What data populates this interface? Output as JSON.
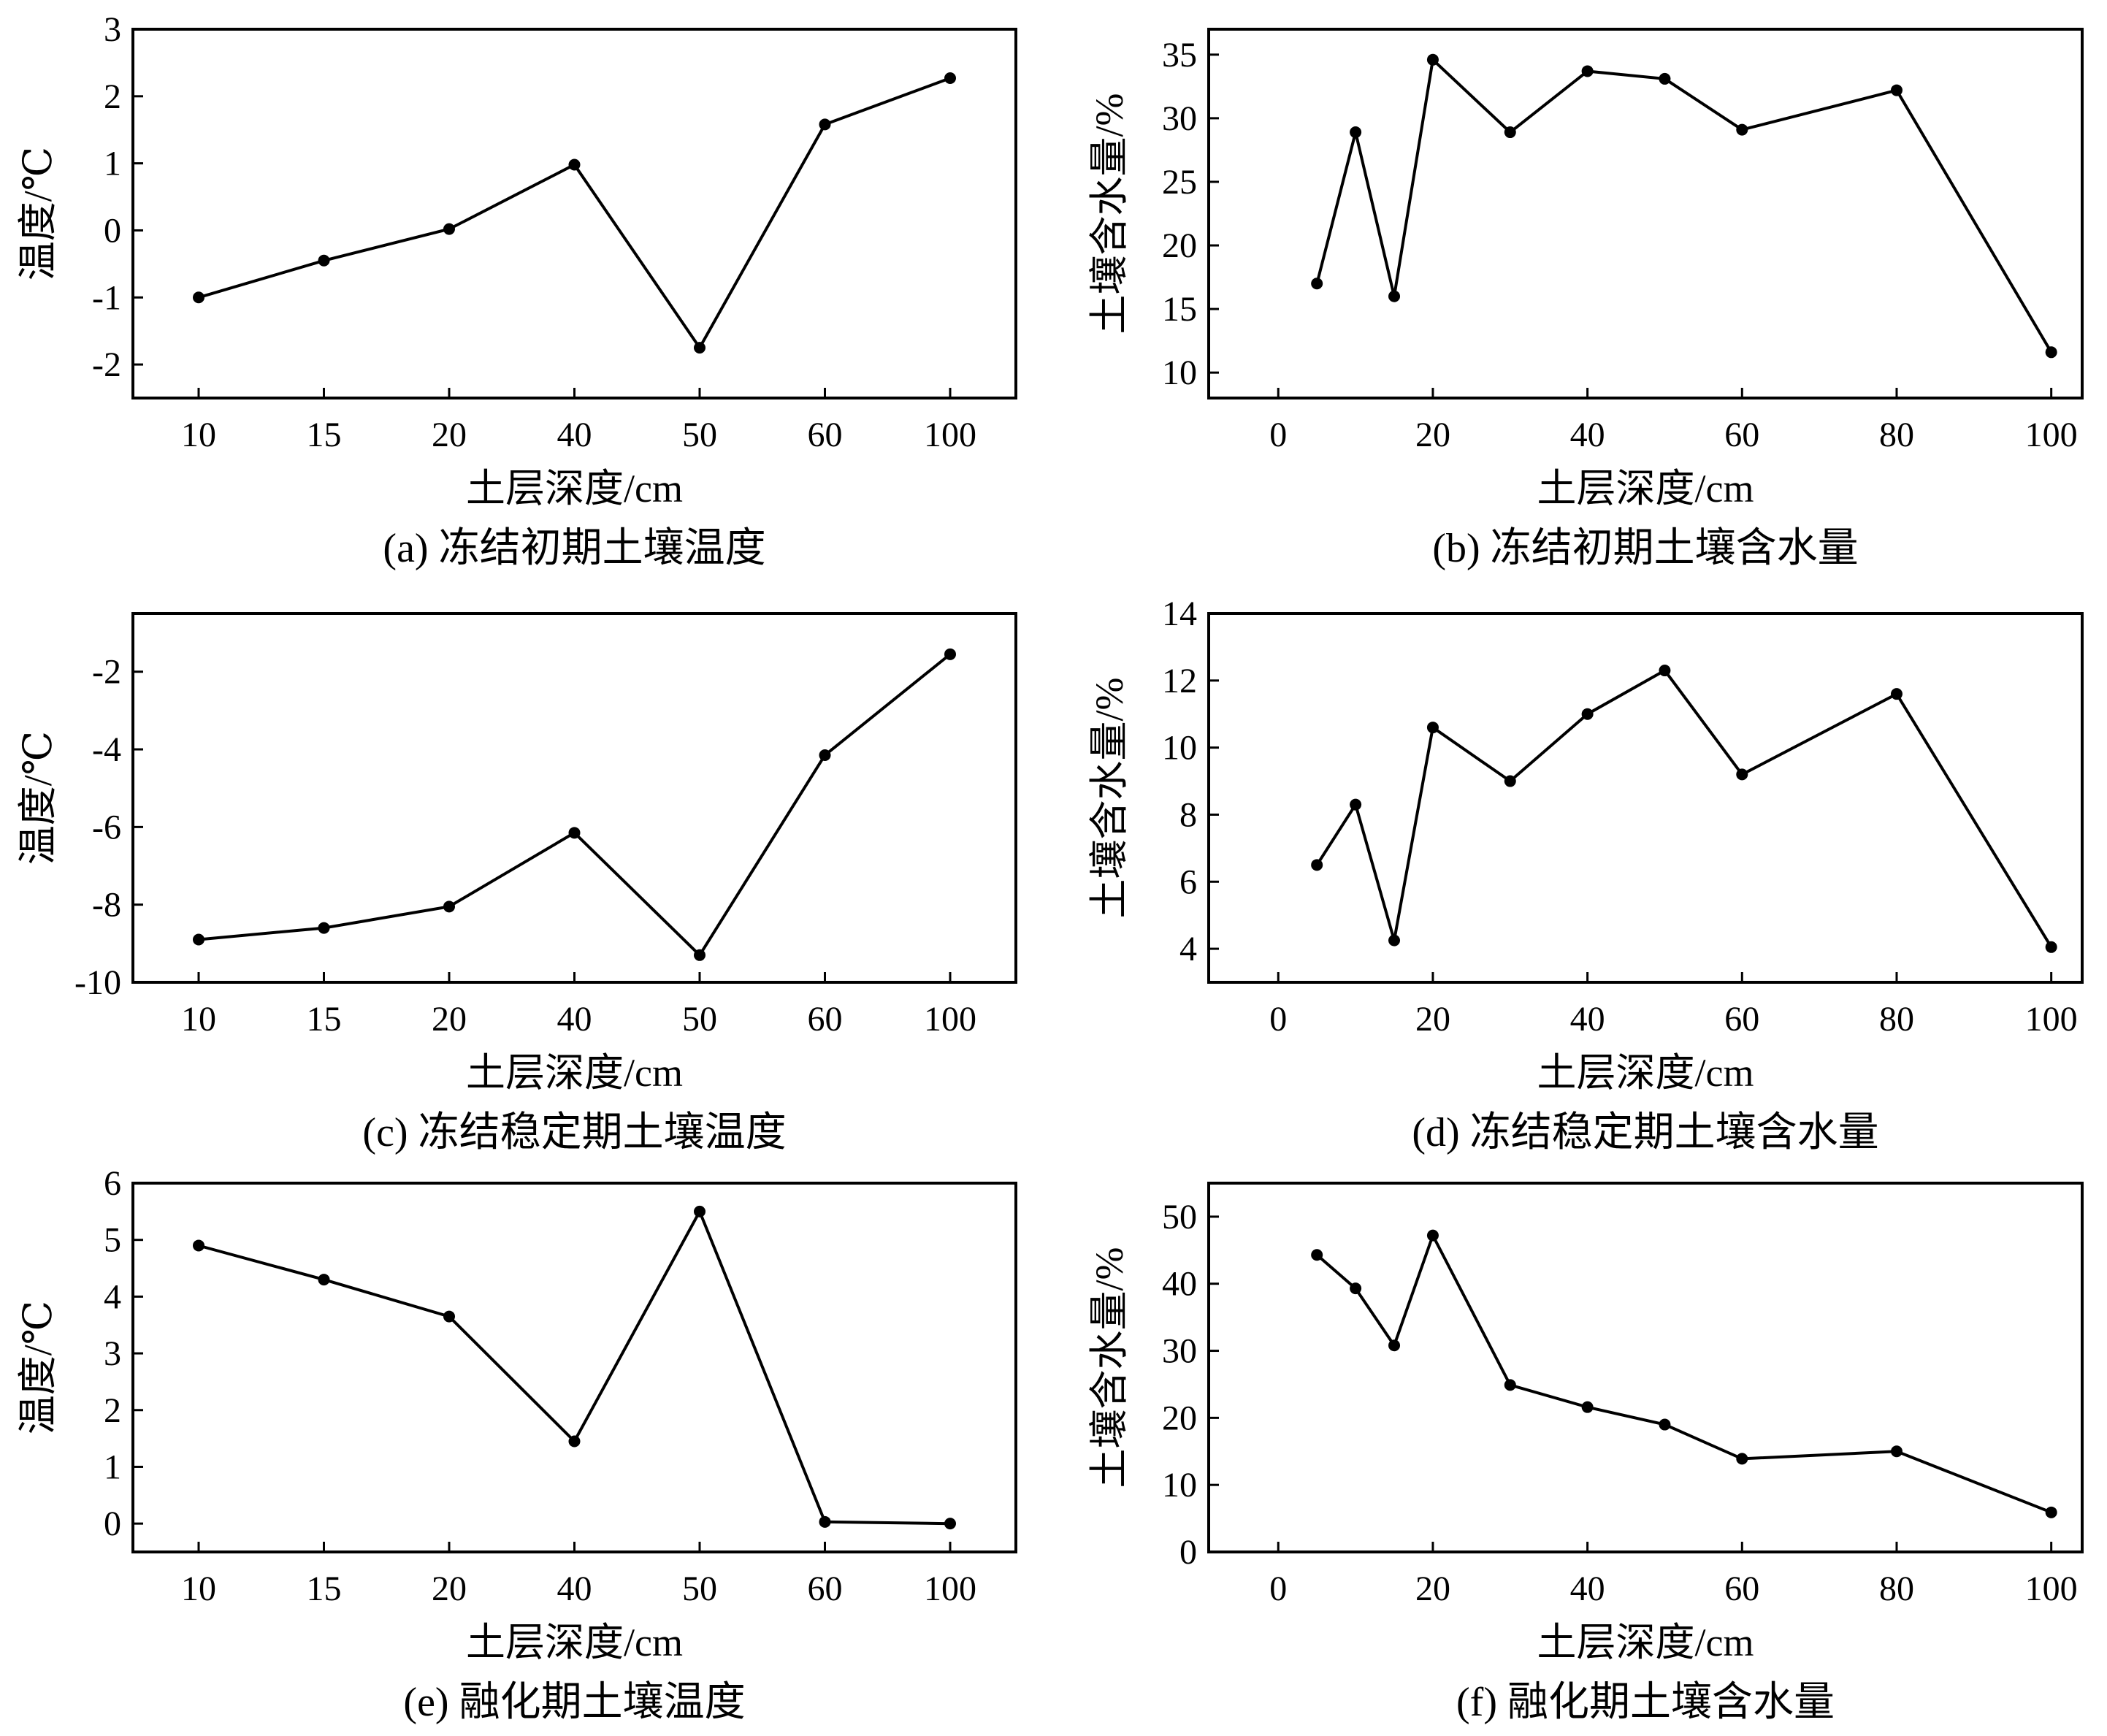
{
  "chart_data": [
    {
      "id": "a",
      "type": "line",
      "caption": "(a) 冻结初期土壤温度",
      "xlabel": "土层深度/cm",
      "ylabel": "温度/℃",
      "x_axis_kind": "categorical",
      "categories": [
        "10",
        "15",
        "20",
        "40",
        "50",
        "60",
        "100"
      ],
      "values": [
        -1.0,
        -0.45,
        0.02,
        0.98,
        -1.75,
        1.58,
        2.27
      ],
      "ylim": [
        -2.5,
        3
      ],
      "yticks": [
        -2,
        -1,
        0,
        1,
        2,
        3
      ],
      "color": "#000000"
    },
    {
      "id": "b",
      "type": "line",
      "caption": "(b) 冻结初期土壤含水量",
      "xlabel": "土层深度/cm",
      "ylabel": "土壤含水量/%",
      "x_axis_kind": "numeric",
      "x": [
        5,
        10,
        15,
        20,
        30,
        40,
        50,
        60,
        80,
        100
      ],
      "values": [
        17.0,
        28.9,
        16.0,
        34.6,
        28.9,
        33.7,
        33.1,
        29.1,
        32.2,
        11.6
      ],
      "xlim": [
        -9,
        104
      ],
      "xticks": [
        0,
        20,
        40,
        60,
        80,
        100
      ],
      "ylim": [
        8,
        37
      ],
      "yticks": [
        10,
        15,
        20,
        25,
        30,
        35
      ],
      "color": "#000000"
    },
    {
      "id": "c",
      "type": "line",
      "caption": "(c) 冻结稳定期土壤温度",
      "xlabel": "土层深度/cm",
      "ylabel": "温度/℃",
      "x_axis_kind": "categorical",
      "categories": [
        "10",
        "15",
        "20",
        "40",
        "50",
        "60",
        "100"
      ],
      "values": [
        -8.9,
        -8.6,
        -8.05,
        -6.15,
        -9.3,
        -4.15,
        -1.55
      ],
      "ylim": [
        -10,
        -0.5
      ],
      "yticks": [
        -10,
        -8,
        -6,
        -4,
        -2
      ],
      "color": "#000000"
    },
    {
      "id": "d",
      "type": "line",
      "caption": "(d) 冻结稳定期土壤含水量",
      "xlabel": "土层深度/cm",
      "ylabel": "土壤含水量/%",
      "x_axis_kind": "numeric",
      "x": [
        5,
        10,
        15,
        20,
        30,
        40,
        50,
        60,
        80,
        100
      ],
      "values": [
        6.5,
        8.3,
        4.25,
        10.6,
        9.0,
        11.0,
        12.3,
        9.2,
        11.6,
        4.05
      ],
      "xlim": [
        -9,
        104
      ],
      "xticks": [
        0,
        20,
        40,
        60,
        80,
        100
      ],
      "ylim": [
        3,
        14
      ],
      "yticks": [
        4,
        6,
        8,
        10,
        12,
        14
      ],
      "color": "#000000"
    },
    {
      "id": "e",
      "type": "line",
      "caption": "(e) 融化期土壤温度",
      "xlabel": "土层深度/cm",
      "ylabel": "温度/℃",
      "x_axis_kind": "categorical",
      "categories": [
        "10",
        "15",
        "20",
        "40",
        "50",
        "60",
        "100"
      ],
      "values": [
        4.9,
        4.3,
        3.65,
        1.45,
        5.5,
        0.03,
        0.0
      ],
      "ylim": [
        -0.5,
        6
      ],
      "yticks": [
        0,
        1,
        2,
        3,
        4,
        5,
        6
      ],
      "color": "#000000"
    },
    {
      "id": "f",
      "type": "line",
      "caption": "(f) 融化期土壤含水量",
      "xlabel": "土层深度/cm",
      "ylabel": "土壤含水量/%",
      "x_axis_kind": "numeric",
      "x": [
        5,
        10,
        15,
        20,
        30,
        40,
        50,
        60,
        80,
        100
      ],
      "values": [
        44.3,
        39.3,
        30.8,
        47.2,
        24.9,
        21.6,
        19.0,
        13.9,
        15.0,
        5.9
      ],
      "xlim": [
        -9,
        104
      ],
      "xticks": [
        0,
        20,
        40,
        60,
        80,
        100
      ],
      "ylim": [
        0,
        55
      ],
      "yticks": [
        0,
        10,
        20,
        30,
        40,
        50
      ],
      "color": "#000000"
    }
  ]
}
